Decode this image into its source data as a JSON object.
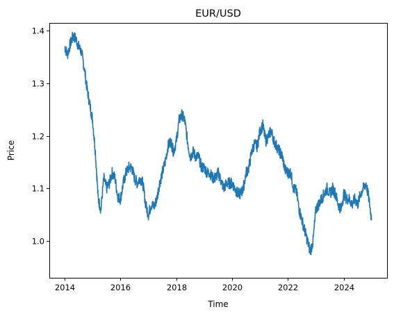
{
  "chart_data": {
    "type": "line",
    "title": "EUR/USD",
    "xlabel": "Time",
    "ylabel": "Price",
    "xlim": [
      2013.45,
      2025.55
    ],
    "ylim": [
      0.93,
      1.415
    ],
    "grid": false,
    "x_ticks": [
      2014,
      2016,
      2018,
      2020,
      2022,
      2024
    ],
    "x_tick_labels": [
      "2014",
      "2016",
      "2018",
      "2020",
      "2022",
      "2024"
    ],
    "y_ticks": [
      1.0,
      1.1,
      1.2,
      1.3,
      1.4
    ],
    "y_tick_labels": [
      "1.0",
      "1.1",
      "1.2",
      "1.3",
      "1.4"
    ],
    "series": [
      {
        "color": "#1f77b4",
        "x": [
          2014.0,
          2014.1,
          2014.2,
          2014.3,
          2014.4,
          2014.5,
          2014.6,
          2014.7,
          2014.8,
          2014.9,
          2015.0,
          2015.1,
          2015.2,
          2015.3,
          2015.4,
          2015.5,
          2015.6,
          2015.7,
          2015.8,
          2015.9,
          2016.0,
          2016.1,
          2016.2,
          2016.3,
          2016.4,
          2016.5,
          2016.6,
          2016.7,
          2016.8,
          2016.9,
          2017.0,
          2017.1,
          2017.2,
          2017.3,
          2017.4,
          2017.5,
          2017.6,
          2017.7,
          2017.8,
          2017.9,
          2018.0,
          2018.1,
          2018.2,
          2018.3,
          2018.4,
          2018.5,
          2018.6,
          2018.7,
          2018.8,
          2018.9,
          2019.0,
          2019.1,
          2019.2,
          2019.3,
          2019.4,
          2019.5,
          2019.6,
          2019.7,
          2019.8,
          2019.9,
          2020.0,
          2020.1,
          2020.2,
          2020.3,
          2020.4,
          2020.5,
          2020.6,
          2020.7,
          2020.8,
          2020.9,
          2021.0,
          2021.1,
          2021.2,
          2021.3,
          2021.4,
          2021.5,
          2021.6,
          2021.7,
          2021.8,
          2021.9,
          2022.0,
          2022.1,
          2022.2,
          2022.3,
          2022.4,
          2022.5,
          2022.6,
          2022.7,
          2022.8,
          2022.9,
          2023.0,
          2023.1,
          2023.2,
          2023.3,
          2023.4,
          2023.5,
          2023.6,
          2023.7,
          2023.8,
          2023.9,
          2024.0,
          2024.1,
          2024.2,
          2024.3,
          2024.4,
          2024.5,
          2024.6,
          2024.7,
          2024.8,
          2024.9,
          2025.0
        ],
        "y": [
          1.37,
          1.355,
          1.375,
          1.39,
          1.385,
          1.37,
          1.36,
          1.33,
          1.29,
          1.26,
          1.23,
          1.17,
          1.08,
          1.06,
          1.12,
          1.1,
          1.11,
          1.13,
          1.12,
          1.085,
          1.08,
          1.11,
          1.13,
          1.14,
          1.14,
          1.12,
          1.11,
          1.12,
          1.11,
          1.07,
          1.05,
          1.07,
          1.065,
          1.08,
          1.11,
          1.13,
          1.15,
          1.18,
          1.19,
          1.17,
          1.19,
          1.23,
          1.24,
          1.23,
          1.19,
          1.16,
          1.17,
          1.16,
          1.16,
          1.14,
          1.14,
          1.13,
          1.13,
          1.12,
          1.12,
          1.13,
          1.115,
          1.1,
          1.11,
          1.11,
          1.11,
          1.1,
          1.09,
          1.09,
          1.1,
          1.13,
          1.14,
          1.17,
          1.185,
          1.18,
          1.21,
          1.22,
          1.19,
          1.2,
          1.21,
          1.19,
          1.18,
          1.17,
          1.16,
          1.135,
          1.13,
          1.13,
          1.1,
          1.095,
          1.06,
          1.04,
          1.02,
          1.0,
          0.98,
          1.0,
          1.06,
          1.07,
          1.08,
          1.09,
          1.1,
          1.09,
          1.1,
          1.09,
          1.07,
          1.06,
          1.09,
          1.08,
          1.08,
          1.07,
          1.08,
          1.07,
          1.09,
          1.1,
          1.11,
          1.08,
          1.04
        ]
      }
    ]
  }
}
